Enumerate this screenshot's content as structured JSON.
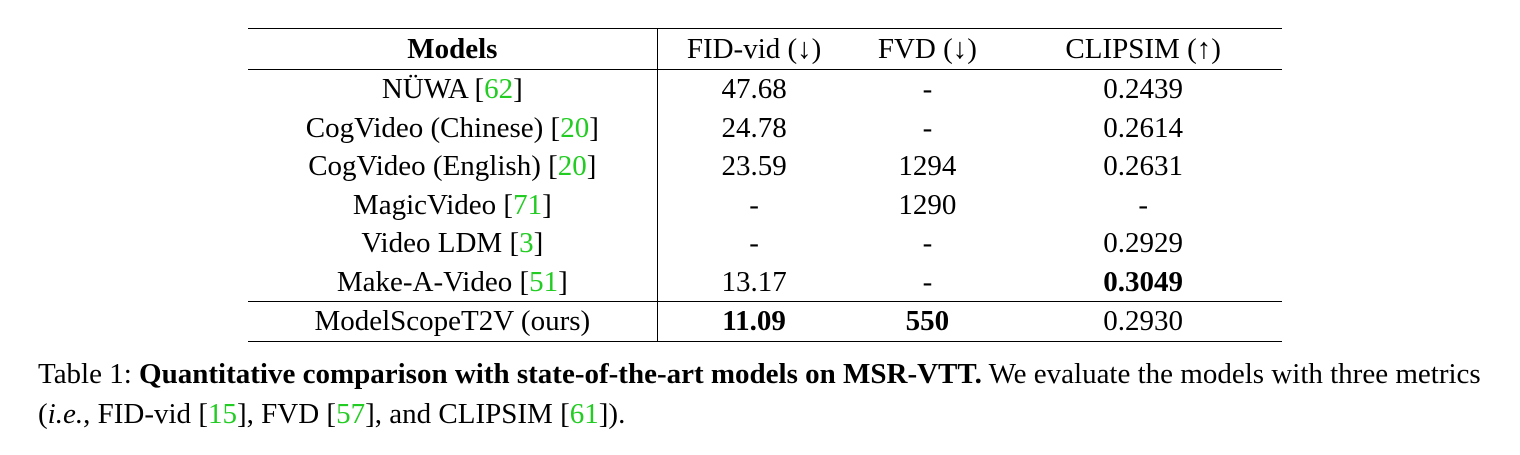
{
  "table": {
    "headers": [
      {
        "text": "Models",
        "bold": true
      },
      {
        "text": "FID-vid (↓)",
        "bold": false
      },
      {
        "text": "FVD (↓)",
        "bold": false
      },
      {
        "text": "CLIPSIM (↑)",
        "bold": false
      }
    ],
    "rows": [
      {
        "model": "NÜWA",
        "ref": "62",
        "fid": "47.68",
        "fvd": "-",
        "clip": "0.2439"
      },
      {
        "model": "CogVideo (Chinese)",
        "ref": "20",
        "fid": "24.78",
        "fvd": "-",
        "clip": "0.2614"
      },
      {
        "model": "CogVideo (English)",
        "ref": "20",
        "fid": "23.59",
        "fvd": "1294",
        "clip": "0.2631"
      },
      {
        "model": "MagicVideo",
        "ref": "71",
        "fid": "-",
        "fvd": "1290",
        "clip": "-"
      },
      {
        "model": "Video LDM",
        "ref": "3",
        "fid": "-",
        "fvd": "-",
        "clip": "0.2929"
      },
      {
        "model": "Make-A-Video",
        "ref": "51",
        "fid": "13.17",
        "fvd": "-",
        "clip": "0.3049"
      },
      {
        "model": "ModelScopeT2V (ours)",
        "ref": "",
        "fid": "11.09",
        "fvd": "550",
        "clip": "0.2930"
      }
    ],
    "bold_cells": [
      "5.clip",
      "6.fid",
      "6.fvd"
    ]
  },
  "caption": {
    "label": "Table 1:",
    "title": "Quantitative comparison with state-of-the-art models on MSR-VTT.",
    "text_before": "We evaluate the models with three metrics (",
    "ie": "i.e.",
    "text_fid": ", FID-vid ",
    "ref_fid": "15",
    "text_fvd": ", FVD ",
    "ref_fvd": "57",
    "text_clip": ", and CLIPSIM ",
    "ref_clip": "61",
    "text_end": ")."
  },
  "colors": {
    "reference_link": "#22cc22",
    "text": "#000000"
  }
}
